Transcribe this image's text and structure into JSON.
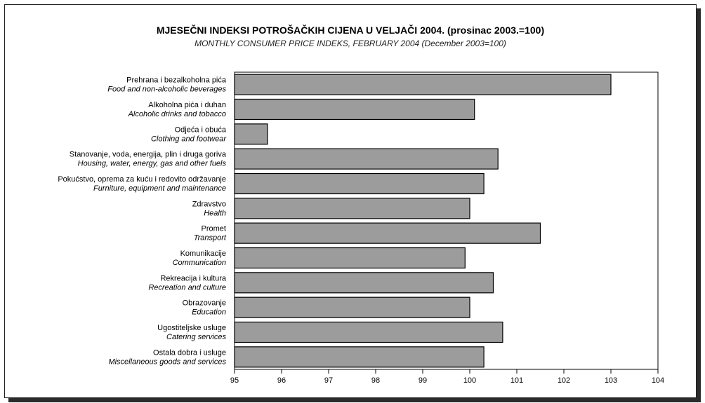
{
  "title": "MJESEČNI INDEKSI POTROŠAČKIH CIJENA U VELJAČI 2004. (prosinac 2003.=100)",
  "subtitle": "MONTHLY CONSUMER PRICE INDEKS, FEBRUARY 2004 (December 2003=100)",
  "chart_data": {
    "type": "bar",
    "orientation": "horizontal",
    "title": "MJESEČNI INDEKSI POTROŠAČKIH CIJENA U VELJAČI 2004. (prosinac 2003.=100)",
    "subtitle": "MONTHLY CONSUMER PRICE INDEKS, FEBRUARY 2004 (December 2003=100)",
    "categories": [
      {
        "hr": "Prehrana i bezalkoholna pića",
        "en": "Food and non-alcoholic beverages"
      },
      {
        "hr": "Alkoholna pića i duhan",
        "en": "Alcoholic drinks and tobacco"
      },
      {
        "hr": "Odjeća i obuća",
        "en": "Clothing and footwear"
      },
      {
        "hr": "Stanovanje, voda, energija, plin i druga goriva",
        "en": "Housing, water, energy, gas and other fuels"
      },
      {
        "hr": "Pokućstvo, oprema za kuću i redovito održavanje",
        "en": "Furniture, equipment and maintenance"
      },
      {
        "hr": "Zdravstvo",
        "en": "Health"
      },
      {
        "hr": "Promet",
        "en": "Transport"
      },
      {
        "hr": "Komunikacije",
        "en": "Communication"
      },
      {
        "hr": "Rekreacija i kultura",
        "en": "Recreation and culture"
      },
      {
        "hr": "Obrazovanje",
        "en": "Education"
      },
      {
        "hr": "Ugostiteljske usluge",
        "en": "Catering services"
      },
      {
        "hr": "Ostala dobra i usluge",
        "en": "Miscellaneous goods and services"
      }
    ],
    "values": [
      103.0,
      100.1,
      95.7,
      100.6,
      100.3,
      100.0,
      101.5,
      99.9,
      100.5,
      100.0,
      100.7,
      100.3
    ],
    "xlim": [
      95,
      104
    ],
    "xticks": [
      "95",
      "96",
      "97",
      "98",
      "99",
      "100",
      "101",
      "102",
      "103",
      "104"
    ],
    "grid": false,
    "bar_color": "#9c9c9c",
    "bar_stroke": "#000000"
  }
}
